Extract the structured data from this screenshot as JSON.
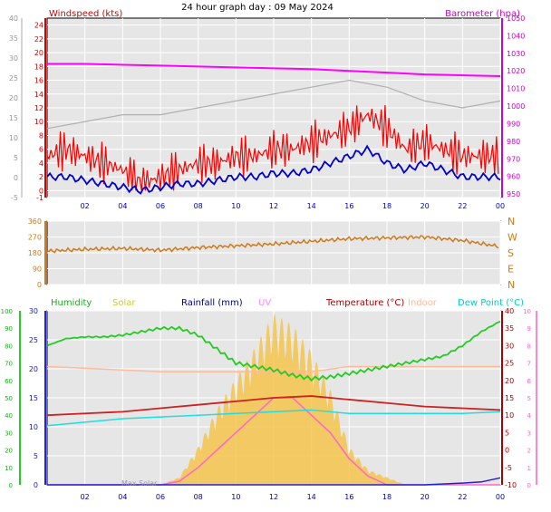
{
  "chart_data": [
    {
      "type": "line",
      "title": "24 hour graph day : 09 May 2024",
      "x_ticks": [
        "02",
        "04",
        "06",
        "08",
        "10",
        "12",
        "14",
        "16",
        "18",
        "20",
        "22",
        "00"
      ],
      "left_axis": {
        "label": "Windspeed (kts)",
        "ticks": [
          "-1",
          "0",
          "2",
          "4",
          "6",
          "8",
          "10",
          "12",
          "14",
          "16",
          "18",
          "20",
          "22",
          "24"
        ],
        "ylim": [
          -1,
          25
        ]
      },
      "outer_left_ticks": [
        "-5",
        "0",
        "5",
        "10",
        "15",
        "20",
        "25",
        "30",
        "35",
        "40"
      ],
      "right_axis": {
        "label": "Barometer (hpa)",
        "ticks": [
          "950",
          "960",
          "970",
          "980",
          "990",
          "1000",
          "1010",
          "1020",
          "1030",
          "1040",
          "1050"
        ],
        "ylim": [
          948,
          1050
        ]
      },
      "series": [
        {
          "name": "Windspeed (kts)",
          "color": "#ff0000",
          "type": "gust",
          "x": [
            0,
            1,
            2,
            3,
            4,
            5,
            6,
            7,
            8,
            9,
            10,
            11,
            12,
            13,
            14,
            15,
            16,
            17,
            18,
            19,
            20,
            21,
            22,
            23,
            24
          ],
          "values": [
            5,
            6,
            5,
            4,
            3,
            1,
            2,
            3,
            4,
            4,
            5,
            5,
            6,
            6,
            7,
            8,
            9,
            11,
            9,
            6,
            7,
            6,
            5,
            5,
            5
          ]
        },
        {
          "name": "Average wind (kts)",
          "color": "#0000cc",
          "x": [
            0,
            1,
            2,
            3,
            4,
            5,
            6,
            7,
            8,
            9,
            10,
            11,
            12,
            13,
            14,
            15,
            16,
            17,
            18,
            19,
            20,
            21,
            22,
            23,
            24
          ],
          "values": [
            2,
            2,
            1.5,
            1,
            0.5,
            0,
            0.5,
            1,
            1,
            1.5,
            2,
            2,
            2.5,
            2.5,
            3,
            4,
            5,
            6,
            4,
            3,
            4,
            3,
            2,
            2,
            2
          ]
        },
        {
          "name": "Barometer (hpa)",
          "color": "#ff00ff",
          "x": [
            0,
            2,
            4,
            6,
            8,
            10,
            12,
            14,
            16,
            18,
            20,
            22,
            24
          ],
          "values": [
            1024,
            1024,
            1023.5,
            1023,
            1022.5,
            1022,
            1021.5,
            1021,
            1020,
            1019,
            1018,
            1017.5,
            1017
          ]
        },
        {
          "name": "Gust (scale 2)",
          "color": "#b0b0b0",
          "x": [
            0,
            2,
            4,
            6,
            8,
            10,
            12,
            14,
            16,
            18,
            20,
            22,
            24
          ],
          "values": [
            9,
            10,
            11,
            11,
            12,
            13,
            14,
            15,
            16,
            15,
            13,
            12,
            13
          ]
        }
      ]
    },
    {
      "type": "line",
      "title": "Wind direction",
      "left_ticks": [
        "0",
        "90",
        "180",
        "270",
        "360"
      ],
      "right_ticks": [
        "N",
        "E",
        "S",
        "W",
        "N"
      ],
      "ylim": [
        0,
        360
      ],
      "x_ticks": [],
      "series": [
        {
          "name": "Wind direction",
          "color": "#cc7a1a",
          "x": [
            0,
            2,
            4,
            6,
            8,
            10,
            12,
            14,
            16,
            18,
            20,
            22,
            24
          ],
          "values": [
            190,
            200,
            205,
            195,
            210,
            220,
            230,
            245,
            260,
            265,
            270,
            250,
            215
          ]
        }
      ]
    },
    {
      "type": "line",
      "title": "",
      "legend": [
        "Humidity",
        "Solar",
        "Rainfall (mm)",
        "UV",
        "Temperature (°C)",
        "Indoor",
        "Dew Point (°C)"
      ],
      "legend_colors": [
        "#22aa22",
        "#cccc33",
        "#000088",
        "#ff88ff",
        "#aa0000",
        "#ffbb99",
        "#00cccc"
      ],
      "x_ticks": [
        "02",
        "04",
        "06",
        "08",
        "10",
        "12",
        "14",
        "16",
        "18",
        "20",
        "22",
        "00"
      ],
      "humidity_ticks": [
        "0",
        "10",
        "20",
        "30",
        "40",
        "50",
        "60",
        "70",
        "80",
        "90",
        "100"
      ],
      "rain_ticks": [
        "0",
        "5",
        "10",
        "15",
        "20",
        "25",
        "30"
      ],
      "temp_ticks": [
        "-10",
        "-5",
        "0",
        "5",
        "10",
        "15",
        "20",
        "25",
        "30",
        "35",
        "40"
      ],
      "uv_ticks": [
        "0",
        "1",
        "2",
        "3",
        "4",
        "5",
        "6",
        "7",
        "8",
        "9",
        "10"
      ],
      "ylim_temp": [
        -10,
        40
      ],
      "annotation": "Max Solar",
      "series": [
        {
          "name": "Humidity",
          "color": "#22cc22",
          "x": [
            0,
            1,
            2,
            3,
            4,
            5,
            6,
            7,
            8,
            9,
            10,
            11,
            12,
            13,
            14,
            15,
            16,
            17,
            18,
            19,
            20,
            21,
            22,
            23,
            24
          ],
          "values": [
            80,
            84,
            85,
            85,
            86,
            88,
            90,
            90,
            86,
            78,
            70,
            68,
            66,
            63,
            61,
            62,
            64,
            66,
            68,
            70,
            72,
            74,
            80,
            88,
            94
          ]
        },
        {
          "name": "Temperature (°C)",
          "color": "#cc2222",
          "x": [
            0,
            2,
            4,
            6,
            8,
            10,
            12,
            14,
            16,
            18,
            20,
            22,
            24
          ],
          "values": [
            10,
            10.5,
            11,
            12,
            13,
            14,
            15,
            15.5,
            14.5,
            13.5,
            12.5,
            12,
            11.5
          ]
        },
        {
          "name": "Indoor",
          "color": "#ffbb99",
          "x": [
            0,
            2,
            4,
            6,
            8,
            10,
            12,
            14,
            16,
            18,
            20,
            22,
            24
          ],
          "values": [
            24,
            23.5,
            23,
            22.5,
            22.5,
            22.5,
            22.5,
            22.5,
            24,
            24,
            24,
            24,
            24
          ]
        },
        {
          "name": "Dew Point (°C)",
          "color": "#22dddd",
          "x": [
            0,
            2,
            4,
            6,
            8,
            10,
            12,
            14,
            16,
            18,
            20,
            22,
            24
          ],
          "values": [
            7,
            8,
            9,
            9.5,
            10,
            10.5,
            11,
            11.5,
            10.5,
            10.5,
            10.5,
            10.5,
            11
          ]
        },
        {
          "name": "Solar",
          "color": "#f5c242",
          "x": [
            0,
            4,
            6,
            7,
            8,
            9,
            10,
            11,
            12,
            13,
            14,
            15,
            16,
            17,
            18,
            19,
            20,
            24
          ],
          "values": [
            0,
            0,
            0,
            2,
            10,
            20,
            28,
            36,
            45,
            42,
            35,
            25,
            10,
            4,
            2,
            0,
            0,
            0
          ]
        },
        {
          "name": "UV",
          "color": "#ff66cc",
          "x": [
            0,
            6,
            7,
            8,
            9,
            10,
            11,
            12,
            13,
            14,
            15,
            16,
            17,
            18,
            24
          ],
          "values": [
            0,
            0,
            0.2,
            1,
            2,
            3,
            4,
            5,
            5,
            4,
            3,
            1.5,
            0.5,
            0,
            0
          ]
        },
        {
          "name": "Rainfall (mm)",
          "color": "#2222cc",
          "x": [
            0,
            12,
            20,
            22,
            23,
            24
          ],
          "values": [
            0,
            0,
            0,
            0.3,
            0.5,
            1.2
          ]
        }
      ]
    }
  ]
}
